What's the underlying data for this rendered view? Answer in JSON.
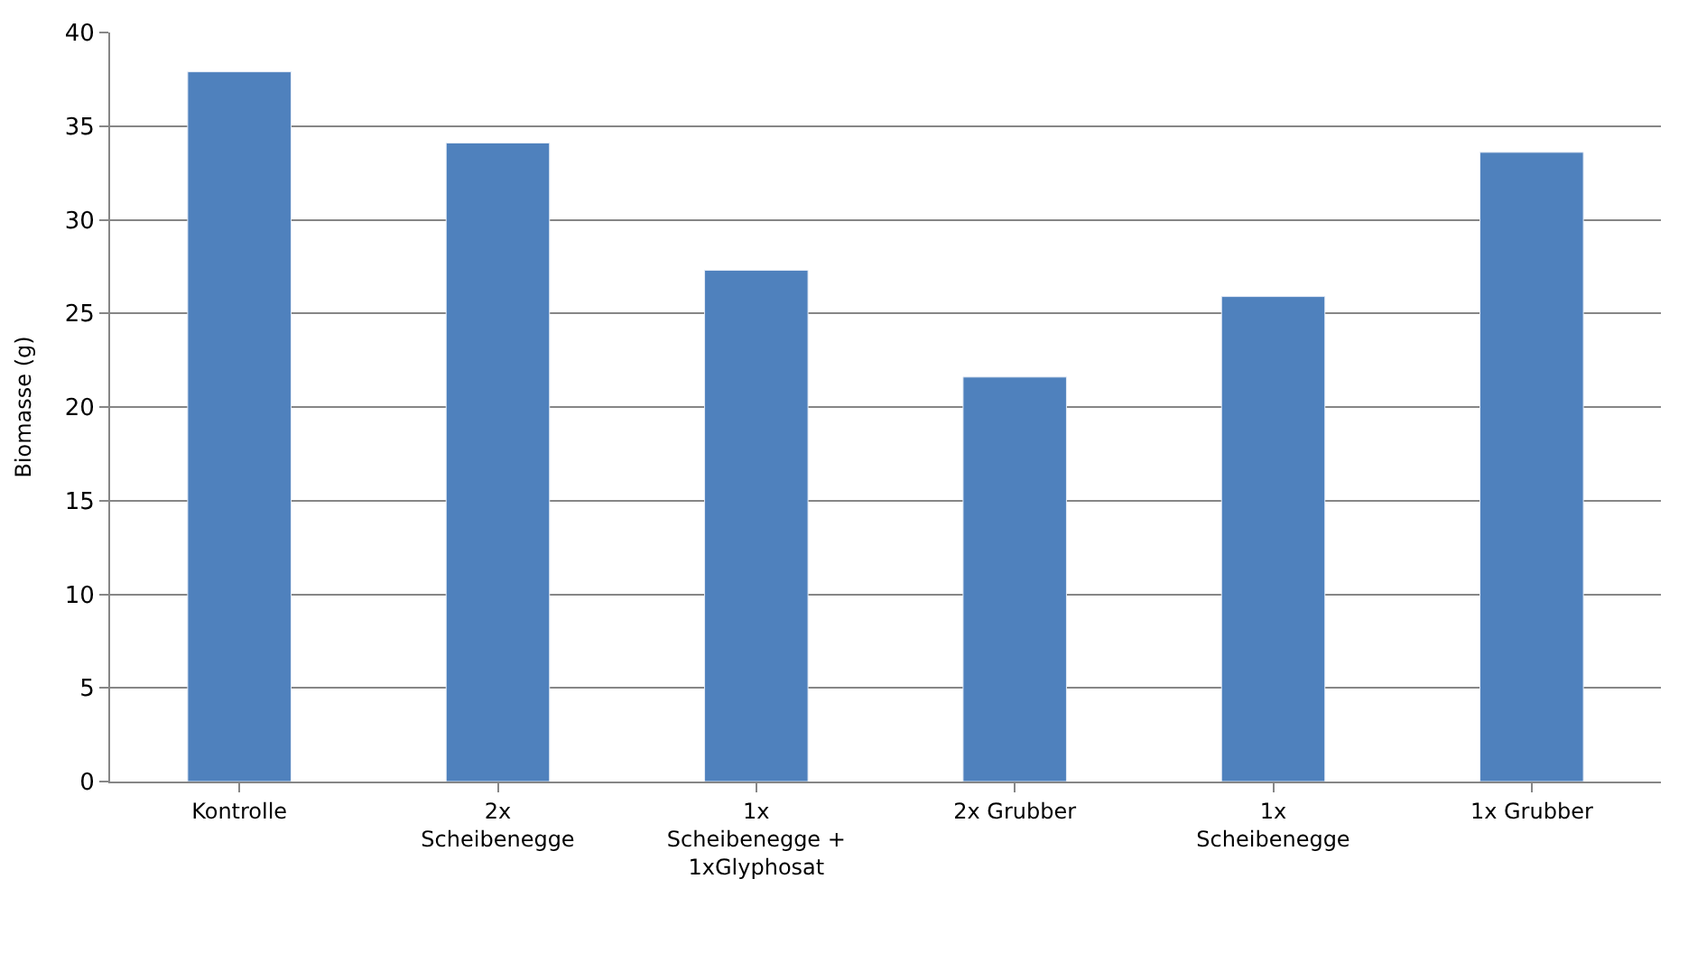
{
  "chart_data": {
    "type": "bar",
    "ylabel": "Biomasse (g)",
    "categories": [
      "Kontrolle",
      "2x\nScheibenegge",
      "1x\nScheibenegge +\n1xGlyphosat",
      "2x Grubber",
      "1x\nScheibenegge",
      "1x Grubber"
    ],
    "values": [
      37.9,
      34.1,
      27.3,
      21.6,
      25.9,
      33.6
    ],
    "color": "#4f81bd",
    "ylim": [
      0,
      40
    ],
    "yticks": [
      0,
      5,
      10,
      15,
      20,
      25,
      30,
      35,
      40
    ],
    "grid": "y"
  }
}
